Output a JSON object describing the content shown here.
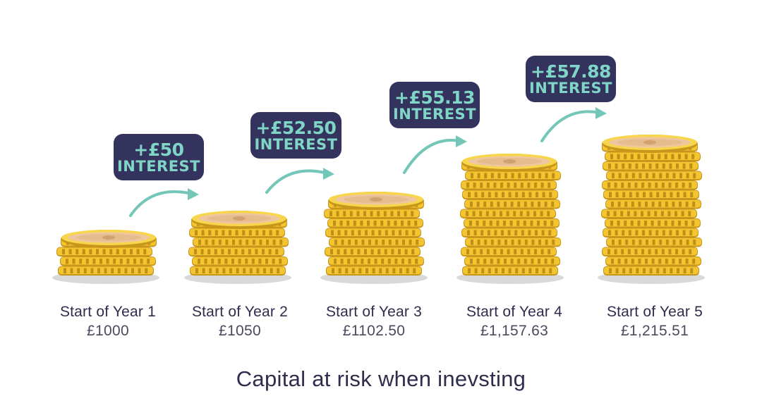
{
  "stacks": [
    {
      "year_label": "Start of Year 1",
      "amount": "£1000",
      "coins": 4
    },
    {
      "year_label": "Start of Year 2",
      "amount": "£1050",
      "coins": 6
    },
    {
      "year_label": "Start of Year 3",
      "amount": "£1102.50",
      "coins": 8
    },
    {
      "year_label": "Start of Year 4",
      "amount": "£1,157.63",
      "coins": 12
    },
    {
      "year_label": "Start of Year 5",
      "amount": "£1,215.51",
      "coins": 14
    }
  ],
  "interest_badges": [
    {
      "amount": "+£50",
      "word": "INTEREST"
    },
    {
      "amount": "+£52.50",
      "word": "INTEREST"
    },
    {
      "amount": "+£55.13",
      "word": "INTEREST"
    },
    {
      "amount": "+£57.88",
      "word": "INTEREST"
    }
  ],
  "footer_note": "Capital at risk when inevsting",
  "colors": {
    "coin_gold": "#f3c531",
    "coin_edge": "#c7961b",
    "badge_bg": "#34335e",
    "badge_text": "#7fd6c6",
    "arrow": "#74c7b8",
    "text_dark": "#2e2d4d"
  },
  "icons": [
    "coin-stack-icon",
    "curved-arrow-icon"
  ]
}
